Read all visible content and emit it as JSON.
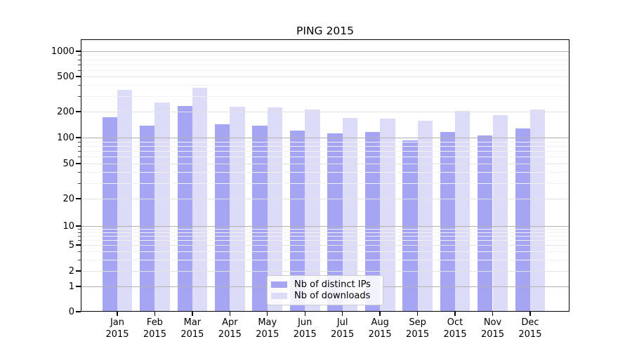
{
  "chart_data": {
    "type": "bar",
    "title": "PING 2015",
    "scale": "symlog",
    "grid": "both",
    "legend_position": "lower center",
    "categories": [
      "Jan 2015",
      "Feb 2015",
      "Mar 2015",
      "Apr 2015",
      "May 2015",
      "Jun 2015",
      "Jul 2015",
      "Aug 2015",
      "Sep 2015",
      "Oct 2015",
      "Nov 2015",
      "Dec 2015"
    ],
    "series": [
      {
        "name": "Nb of distinct IPs",
        "color": "#a5a5f4",
        "values": [
          172,
          138,
          232,
          144,
          138,
          121,
          112,
          116,
          93,
          116,
          106,
          127
        ]
      },
      {
        "name": "Nb of downloads",
        "color": "#dcdcf9",
        "values": [
          350,
          255,
          371,
          226,
          224,
          212,
          170,
          167,
          158,
          205,
          183,
          212
        ]
      }
    ],
    "yticks": [
      0,
      1,
      2,
      5,
      10,
      20,
      50,
      100,
      200,
      500,
      1000
    ],
    "ylim": [
      0,
      1370
    ],
    "xlabel": "",
    "ylabel": ""
  },
  "colors": {
    "grid_major": "#b2b2b2",
    "grid_light": "#e2e2e2",
    "grid_minor": "#f1f1f1",
    "axis": "#000000",
    "background": "#ffffff"
  }
}
